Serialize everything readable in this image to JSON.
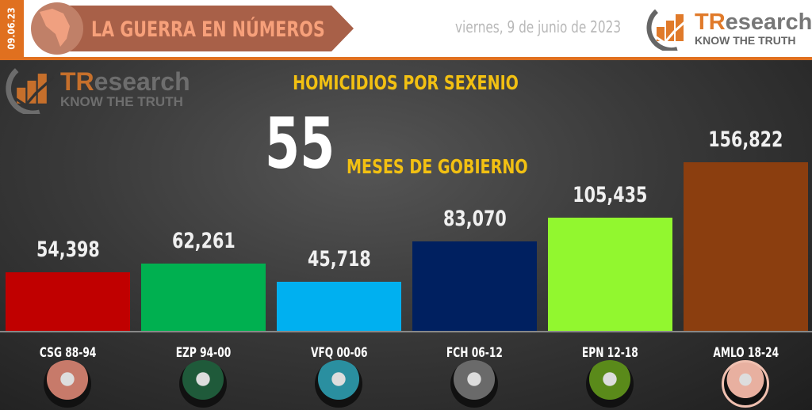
{
  "header": {
    "date_tag": "09.06.23",
    "banner": "LA GUERRA EN NÚMEROS",
    "date": "viernes, 9 de junio de 2023",
    "logo": {
      "tr": "TR",
      "rest": "esearch",
      "tagline": "KNOW THE TRUTH"
    }
  },
  "subtitle": {
    "number": "55",
    "text": "MESES DE GOBIERNO"
  },
  "colors": {
    "accent": "#e0701f",
    "title": "#f2c012"
  },
  "chart_data": {
    "type": "bar",
    "title": "HOMICIDIOS POR SEXENIO",
    "categories": [
      "CSG 88-94",
      "EZP 94-00",
      "VFQ 00-06",
      "FCH 06-12",
      "EPN 12-18",
      "AMLO 18-24"
    ],
    "values": [
      54398,
      62261,
      45718,
      83070,
      105435,
      156822
    ],
    "value_labels": [
      "54,398",
      "62,261",
      "45,718",
      "83,070",
      "105,435",
      "156,822"
    ],
    "bar_colors": [
      "#c00000",
      "#00b050",
      "#00b0f0",
      "#002060",
      "#92f72f",
      "#8b3e0f"
    ],
    "avatar_tints": [
      "#c77a6a",
      "#1f5a3a",
      "#2a8fa0",
      "#6a6a6a",
      "#5a8a1a",
      "#e8b0a0"
    ],
    "grid": false,
    "legend": "none"
  }
}
